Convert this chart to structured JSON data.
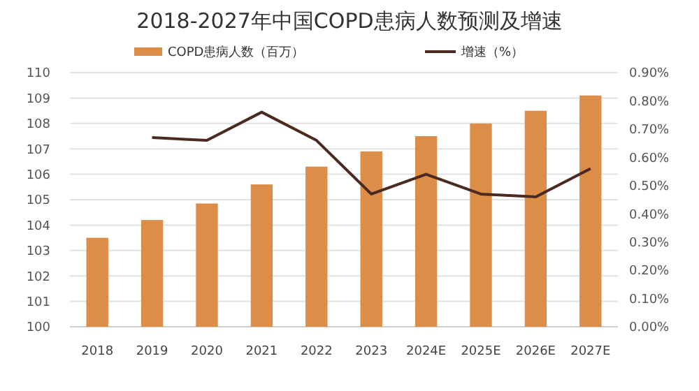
{
  "chart_data": {
    "type": "bar",
    "title": "2018-2027年中国COPD患病人数预测及增速",
    "categories": [
      "2018",
      "2019",
      "2020",
      "2021",
      "2022",
      "2023",
      "2024E",
      "2025E",
      "2026E",
      "2027E"
    ],
    "series": [
      {
        "name": "COPD患病人数（百万）",
        "color": "#dc8d48",
        "values": [
          103.5,
          104.2,
          104.85,
          105.6,
          106.3,
          106.9,
          107.5,
          108.0,
          108.5,
          109.1
        ]
      },
      {
        "name": "增速（%）",
        "type": "line",
        "axis": "y2",
        "color": "#4b2a22",
        "values": [
          null,
          0.67,
          0.66,
          0.76,
          0.66,
          0.47,
          0.54,
          0.47,
          0.46,
          0.56
        ]
      }
    ],
    "ylim": [
      100,
      110
    ],
    "yticks": [
      100,
      101,
      102,
      103,
      104,
      105,
      106,
      107,
      108,
      109,
      110
    ],
    "y2lim": [
      0,
      0.9
    ],
    "y2ticks": [
      {
        "value": 0,
        "label": "0.00%"
      },
      {
        "value": 0.1,
        "label": "0.10%"
      },
      {
        "value": 0.2,
        "label": "0.20%"
      },
      {
        "value": 0.3,
        "label": "0.30%"
      },
      {
        "value": 0.4,
        "label": "0.40%"
      },
      {
        "value": 0.5,
        "label": "0.50%"
      },
      {
        "value": 0.6,
        "label": "0.60%"
      },
      {
        "value": 0.7,
        "label": "0.70%"
      },
      {
        "value": 0.8,
        "label": "0.80%"
      },
      {
        "value": 0.9,
        "label": "0.90%"
      }
    ],
    "grid": "y",
    "legend": "top",
    "marker": "none",
    "line_style": "solid"
  }
}
